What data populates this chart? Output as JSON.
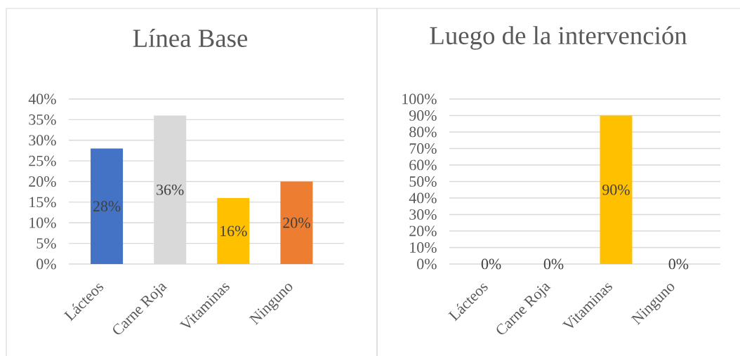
{
  "chart_data": [
    {
      "type": "bar",
      "title": "Línea Base",
      "categories": [
        "Lácteos",
        "Carne Roja",
        "Vitaminas",
        "Ninguno"
      ],
      "values": [
        28,
        36,
        16,
        20
      ],
      "colors": [
        "#4472c4",
        "#d9d9d9",
        "#ffc000",
        "#ed7d31"
      ],
      "value_labels": [
        "28%",
        "36%",
        "16%",
        "20%"
      ],
      "ylim": [
        0,
        40
      ],
      "yticks": [
        {
          "value": 0,
          "label": "0%"
        },
        {
          "value": 5,
          "label": "5%"
        },
        {
          "value": 10,
          "label": "10%"
        },
        {
          "value": 15,
          "label": "15%"
        },
        {
          "value": 20,
          "label": "20%"
        },
        {
          "value": 25,
          "label": "25%"
        },
        {
          "value": 30,
          "label": "30%"
        },
        {
          "value": 35,
          "label": "35%"
        },
        {
          "value": 40,
          "label": "40%"
        }
      ],
      "grid": "y"
    },
    {
      "type": "bar",
      "title": "Luego de la intervención",
      "categories": [
        "Lácteos",
        "Carne Roja",
        "Vitaminas",
        "Ninguno"
      ],
      "values": [
        0,
        0,
        90,
        0
      ],
      "colors": [
        "#4472c4",
        "#d9d9d9",
        "#ffc000",
        "#ed7d31"
      ],
      "value_labels": [
        "0%",
        "0%",
        "90%",
        "0%"
      ],
      "ylim": [
        0,
        100
      ],
      "yticks": [
        {
          "value": 0,
          "label": "0%"
        },
        {
          "value": 10,
          "label": "10%"
        },
        {
          "value": 20,
          "label": "20%"
        },
        {
          "value": 30,
          "label": "30%"
        },
        {
          "value": 40,
          "label": "40%"
        },
        {
          "value": 50,
          "label": "50%"
        },
        {
          "value": 60,
          "label": "60%"
        },
        {
          "value": 70,
          "label": "70%"
        },
        {
          "value": 80,
          "label": "80%"
        },
        {
          "value": 90,
          "label": "90%"
        },
        {
          "value": 100,
          "label": "100%"
        }
      ],
      "grid": "y"
    }
  ]
}
